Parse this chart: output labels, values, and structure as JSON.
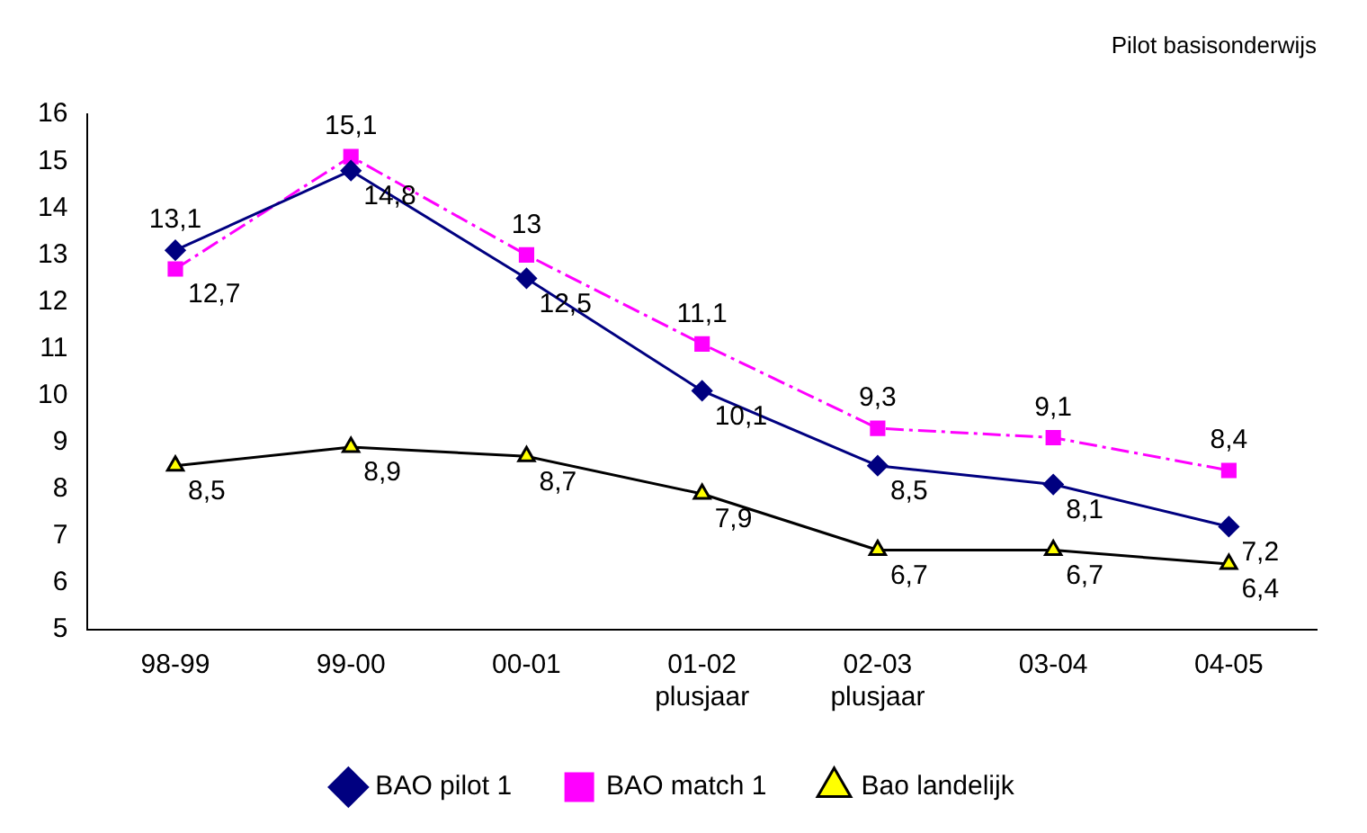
{
  "chart_data": {
    "type": "line",
    "title": "Pilot basisonderwijs",
    "categories": [
      "98-99",
      "99-00",
      "00-01",
      "01-02\nplusjaar",
      "02-03\nplusjaar",
      "03-04",
      "04-05"
    ],
    "series": [
      {
        "name": "BAO pilot 1",
        "color": "#000080",
        "marker": "diamond",
        "line_style": "solid",
        "values": [
          13.1,
          14.8,
          12.5,
          10.1,
          8.5,
          8.1,
          7.2
        ],
        "value_labels": [
          "13,1",
          "14,8",
          "12,5",
          "10,1",
          "8,5",
          "8,1",
          "7,2"
        ]
      },
      {
        "name": "BAO match 1",
        "color": "#ff00ff",
        "marker": "square",
        "line_style": "dashed",
        "values": [
          12.7,
          15.1,
          13,
          11.1,
          9.3,
          9.1,
          8.4
        ],
        "value_labels": [
          "12,7",
          "15,1",
          "13",
          "11,1",
          "9,3",
          "9,1",
          "8,4"
        ]
      },
      {
        "name": "Bao landelijk",
        "color": "#000000",
        "marker": "triangle",
        "line_style": "solid",
        "values": [
          8.5,
          8.9,
          8.7,
          7.9,
          6.7,
          6.7,
          6.4
        ],
        "value_labels": [
          "8,5",
          "8,9",
          "8,7",
          "7,9",
          "6,7",
          "6,7",
          "6,4"
        ]
      }
    ],
    "ylim": [
      5,
      16
    ],
    "yticks": [
      5,
      6,
      7,
      8,
      9,
      10,
      11,
      12,
      13,
      14,
      15,
      16
    ],
    "grid": false,
    "legend": "bottom"
  }
}
